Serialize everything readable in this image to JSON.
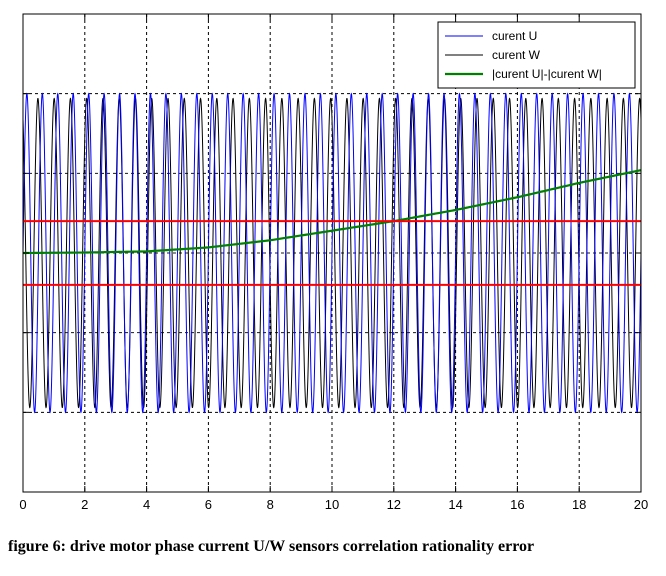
{
  "caption": "figure 6: drive motor phase current U/W sensors correlation rationality error",
  "chart_data": {
    "type": "line",
    "title": "",
    "xlabel": "",
    "ylabel": "",
    "xlim": [
      0,
      20
    ],
    "ylim": [
      -1.5,
      1.5
    ],
    "xticks": [
      0,
      2,
      4,
      6,
      8,
      10,
      12,
      14,
      16,
      18,
      20
    ],
    "yticks": [
      -1.5,
      -1,
      -0.5,
      0,
      0.5,
      1,
      1.5
    ],
    "ytick_labels_visible": false,
    "grid": true,
    "legend_position": "top-right",
    "series": [
      {
        "name": "curent U",
        "color": "#0000ff",
        "kind": "sinusoid",
        "amplitude": 1.0,
        "offset": 0,
        "cycles": 40,
        "phase_deg": 0
      },
      {
        "name": "curent W",
        "color": "#000000",
        "kind": "sinusoid",
        "amplitude": 0.97,
        "offset": 0,
        "cycles": 38,
        "phase_deg": 120
      },
      {
        "name": "|curent U|-|curent W|",
        "color": "#008000",
        "x": [
          0,
          2,
          4,
          6,
          8,
          10,
          12,
          14,
          16,
          18,
          20
        ],
        "y": [
          0.0,
          0.003,
          0.01,
          0.035,
          0.08,
          0.14,
          0.2,
          0.27,
          0.35,
          0.44,
          0.52
        ]
      }
    ],
    "threshold_lines": [
      {
        "y": 0.2,
        "color": "#ff0000"
      },
      {
        "y": -0.2,
        "color": "#ff0000"
      }
    ],
    "reference_lines": [
      {
        "y": 1.0,
        "style": "dashed"
      },
      {
        "y": -1.0,
        "style": "dashed"
      }
    ]
  }
}
